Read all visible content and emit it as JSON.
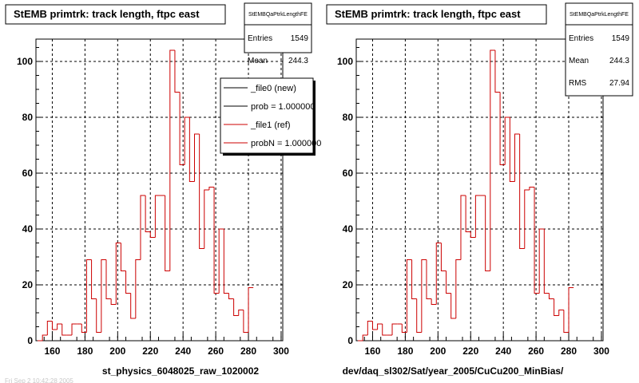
{
  "chart_data": [
    {
      "type": "histogram",
      "title": "StEMB primtrk: track length, ftpc east",
      "xlabel": "st_physics_6048025_raw_1020002",
      "xlim": [
        150,
        301
      ],
      "ylim": [
        0,
        108
      ],
      "grid": true,
      "x_ticks": [
        "160",
        "180",
        "200",
        "220",
        "240",
        "260",
        "280",
        "300"
      ],
      "y_ticks": [
        "0",
        "20",
        "40",
        "60",
        "80",
        "100"
      ],
      "bin_width": 3,
      "bins_start": 151,
      "series": [
        {
          "name": "_file1 (ref)",
          "color": "#cc0000",
          "values": [
            0,
            2,
            7,
            4,
            6,
            2,
            2,
            6,
            6,
            3,
            29,
            15,
            3,
            29,
            15,
            13,
            35,
            25,
            17,
            8,
            29,
            52,
            39,
            37,
            52,
            52,
            25,
            104,
            89,
            63,
            80,
            57,
            74,
            33,
            54,
            55,
            17,
            40,
            17,
            15,
            9,
            11,
            3,
            19
          ]
        }
      ],
      "stats": {
        "name": "StEMBQaPtrkLengthFE",
        "entries_label": "Entries",
        "entries": "1549",
        "mean_label": "Mean",
        "mean": "244.3"
      },
      "legend": {
        "placement": "top-right",
        "entries": [
          {
            "label": "_file0 (new)",
            "color": "#000000"
          },
          {
            "label": "prob = 1.000000",
            "color": "#000000"
          },
          {
            "label": "_file1 (ref)",
            "color": "#cc0000"
          },
          {
            "label": "probN = 1.000000",
            "color": "#cc0000"
          }
        ]
      }
    },
    {
      "type": "histogram",
      "title": "StEMB primtrk: track length, ftpc east",
      "xlabel": "dev/daq_sl302/Sat/year_2005/CuCu200_MinBias/",
      "xlim": [
        150,
        301
      ],
      "ylim": [
        0,
        108
      ],
      "grid": true,
      "x_ticks": [
        "160",
        "180",
        "200",
        "220",
        "240",
        "260",
        "280",
        "300"
      ],
      "y_ticks": [
        "0",
        "20",
        "40",
        "60",
        "80",
        "100"
      ],
      "bin_width": 3,
      "bins_start": 151,
      "series": [
        {
          "name": "",
          "color": "#cc0000",
          "values": [
            0,
            2,
            7,
            4,
            6,
            2,
            2,
            6,
            6,
            3,
            29,
            15,
            3,
            29,
            15,
            13,
            35,
            25,
            17,
            8,
            29,
            52,
            39,
            37,
            52,
            52,
            25,
            104,
            89,
            63,
            80,
            57,
            74,
            33,
            54,
            55,
            17,
            40,
            17,
            15,
            9,
            11,
            3,
            19
          ]
        }
      ],
      "stats": {
        "name": "StEMBQaPtrkLengthFE",
        "entries_label": "Entries",
        "entries": "1549",
        "mean_label": "Mean",
        "mean": "244.3",
        "rms_label": "RMS",
        "rms": "27.94"
      }
    }
  ],
  "footer_text": "Fri Sep 2 10:42:28 2005"
}
